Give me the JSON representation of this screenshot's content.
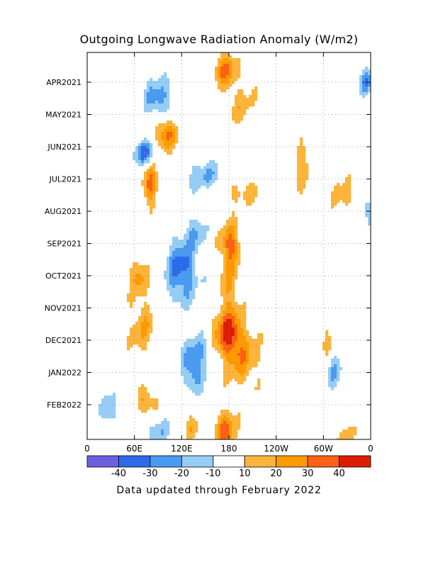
{
  "chart_data": {
    "type": "heatmap",
    "title": "Outgoing Longwave Radiation Anomaly (W/m2)",
    "x_tick_labels": [
      "0",
      "60E",
      "120E",
      "180",
      "120W",
      "60W",
      "0"
    ],
    "x_ticks_deg": [
      0,
      60,
      120,
      180,
      240,
      300,
      360
    ],
    "xlim_deg": [
      0,
      360
    ],
    "y_tick_labels": [
      "APR2021",
      "MAY2021",
      "JUN2021",
      "JUL2021",
      "AUG2021",
      "SEP2021",
      "OCT2021",
      "NOV2021",
      "DEC2021",
      "JAN2022",
      "FEB2022"
    ],
    "y_direction": "time increases downward",
    "color_levels": [
      -40,
      -30,
      -20,
      -10,
      10,
      20,
      30,
      40
    ],
    "colorbar_labels": [
      "-40",
      "-30",
      "-20",
      "-10",
      "10",
      "20",
      "30",
      "40"
    ],
    "colors": [
      "#6c5fe0",
      "#2c6be8",
      "#4a9af0",
      "#96cdf4",
      "#ffffff",
      "#fcb43a",
      "#fc9a00",
      "#fc6014",
      "#dc1e00"
    ],
    "grid": true,
    "footer": "Data updated through February 2022",
    "features": [
      {
        "lon": 175,
        "month": -0.4,
        "value": 32,
        "r_lon": 14,
        "r_month": 0.5
      },
      {
        "lon": 195,
        "month": 0.7,
        "value": 14,
        "r_lon": 20,
        "r_month": 0.7
      },
      {
        "lon": 90,
        "month": 0.5,
        "value": -26,
        "r_lon": 18,
        "r_month": 0.6
      },
      {
        "lon": 355,
        "month": 0.0,
        "value": -30,
        "r_lon": 8,
        "r_month": 0.4
      },
      {
        "lon": 100,
        "month": 1.6,
        "value": 32,
        "r_lon": 14,
        "r_month": 0.5
      },
      {
        "lon": 72,
        "month": 2.2,
        "value": -36,
        "r_lon": 12,
        "r_month": 0.35
      },
      {
        "lon": 150,
        "month": 2.9,
        "value": -20,
        "r_lon": 28,
        "r_month": 0.45
      },
      {
        "lon": 80,
        "month": 3.2,
        "value": 34,
        "r_lon": 9,
        "r_month": 0.6
      },
      {
        "lon": 272,
        "month": 2.6,
        "value": 18,
        "r_lon": 12,
        "r_month": 0.7
      },
      {
        "lon": 195,
        "month": 3.4,
        "value": 14,
        "r_lon": 30,
        "r_month": 0.45
      },
      {
        "lon": 325,
        "month": 3.6,
        "value": 14,
        "r_lon": 14,
        "r_month": 0.8
      },
      {
        "lon": 355,
        "month": 3.9,
        "value": -18,
        "r_lon": 8,
        "r_month": 0.6
      },
      {
        "lon": 138,
        "month": 4.6,
        "value": -16,
        "r_lon": 12,
        "r_month": 0.5
      },
      {
        "lon": 182,
        "month": 5.0,
        "value": 28,
        "r_lon": 12,
        "r_month": 0.6
      },
      {
        "lon": 120,
        "month": 5.8,
        "value": -34,
        "r_lon": 20,
        "r_month": 1.0
      },
      {
        "lon": 65,
        "month": 6.0,
        "value": 22,
        "r_lon": 12,
        "r_month": 0.6
      },
      {
        "lon": 180,
        "month": 6.3,
        "value": 18,
        "r_lon": 14,
        "r_month": 1.4
      },
      {
        "lon": 70,
        "month": 7.6,
        "value": 18,
        "r_lon": 18,
        "r_month": 0.9
      },
      {
        "lon": 178,
        "month": 7.8,
        "value": 36,
        "r_lon": 18,
        "r_month": 0.7
      },
      {
        "lon": 198,
        "month": 8.6,
        "value": 22,
        "r_lon": 22,
        "r_month": 0.9
      },
      {
        "lon": 140,
        "month": 8.3,
        "value": -18,
        "r_lon": 18,
        "r_month": 0.5
      },
      {
        "lon": 135,
        "month": 9.0,
        "value": -26,
        "r_lon": 14,
        "r_month": 0.6
      },
      {
        "lon": 305,
        "month": 8.0,
        "value": 14,
        "r_lon": 8,
        "r_month": 0.5
      },
      {
        "lon": 315,
        "month": 9.0,
        "value": -18,
        "r_lon": 10,
        "r_month": 0.6
      },
      {
        "lon": 75,
        "month": 9.9,
        "value": 22,
        "r_lon": 14,
        "r_month": 0.4
      },
      {
        "lon": 28,
        "month": 10.2,
        "value": -18,
        "r_lon": 10,
        "r_month": 0.6
      },
      {
        "lon": 175,
        "month": 10.8,
        "value": 34,
        "r_lon": 14,
        "r_month": 0.6
      },
      {
        "lon": 90,
        "month": 10.8,
        "value": -18,
        "r_lon": 14,
        "r_month": 0.4
      },
      {
        "lon": 135,
        "month": 10.8,
        "value": 16,
        "r_lon": 12,
        "r_month": 0.4
      },
      {
        "lon": 330,
        "month": 11.0,
        "value": 16,
        "r_lon": 10,
        "r_month": 0.4
      }
    ]
  }
}
